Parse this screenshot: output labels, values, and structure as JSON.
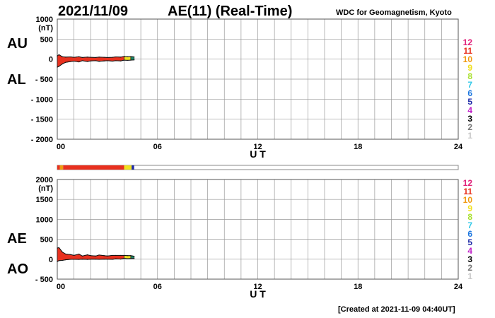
{
  "header": {
    "date": "2021/11/09",
    "title": "AE(11) (Real-Time)",
    "source": "WDC for Geomagnetism, Kyoto",
    "created": "[Created at 2021-11-09 04:40UT]"
  },
  "colors": {
    "fill_main": "#e8301e",
    "fill_recent": "#f0e020",
    "fill_latest": "#1f8a6a",
    "bar_edge": "#f09020",
    "grid": "#999999"
  },
  "legend_levels": [
    {
      "label": "12",
      "color": "#e0207a"
    },
    {
      "label": "11",
      "color": "#e8301e"
    },
    {
      "label": "10",
      "color": "#f09a10"
    },
    {
      "label": "9",
      "color": "#f0e020"
    },
    {
      "label": "8",
      "color": "#a8e030"
    },
    {
      "label": "7",
      "color": "#30c8e8"
    },
    {
      "label": "6",
      "color": "#1e78e0"
    },
    {
      "label": "5",
      "color": "#1e2aa8"
    },
    {
      "label": "4",
      "color": "#c020c8"
    },
    {
      "label": "3",
      "color": "#000000"
    },
    {
      "label": "2",
      "color": "#777777"
    },
    {
      "label": "1",
      "color": "#c8c8c8"
    }
  ],
  "chart_data": [
    {
      "type": "area",
      "panel": "AU/AL",
      "side_labels": [
        "AU",
        "AL"
      ],
      "ylabel": "(nT)",
      "xlabel": "U T",
      "ylim": [
        -2000,
        1000
      ],
      "yticks": [
        1000,
        500,
        0,
        -500,
        -1000,
        -1500,
        -2000
      ],
      "ytick_labels": [
        "1000",
        "500",
        "0",
        "- 500",
        "- 1000",
        "- 1500",
        "- 2000"
      ],
      "xlim": [
        0,
        24
      ],
      "xticks": [
        0,
        6,
        12,
        18,
        24
      ],
      "xtick_labels": [
        "00",
        "06",
        "12",
        "18",
        "24"
      ],
      "grid": true,
      "x": [
        0.0,
        0.1,
        0.3,
        0.5,
        0.8,
        1.0,
        1.3,
        1.5,
        1.8,
        2.0,
        2.3,
        2.5,
        2.8,
        3.0,
        3.3,
        3.5,
        3.8,
        4.0,
        4.2,
        4.4,
        4.6
      ],
      "series": [
        {
          "name": "AU",
          "values": [
            80,
            110,
            60,
            50,
            55,
            45,
            60,
            40,
            50,
            45,
            40,
            50,
            45,
            40,
            45,
            55,
            50,
            70,
            60,
            65,
            55
          ]
        },
        {
          "name": "AL",
          "values": [
            -200,
            -180,
            -120,
            -80,
            -60,
            -50,
            -70,
            -40,
            -60,
            -45,
            -40,
            -55,
            -45,
            -40,
            -50,
            -40,
            -45,
            -25,
            -30,
            -25,
            -20
          ]
        }
      ]
    },
    {
      "type": "area",
      "panel": "AE/AO",
      "side_labels": [
        "AE",
        "AO"
      ],
      "ylabel": "(nT)",
      "xlabel": "U T",
      "ylim": [
        -500,
        2000
      ],
      "yticks": [
        2000,
        1500,
        1000,
        500,
        0,
        -500
      ],
      "ytick_labels": [
        "2000",
        "1500",
        "1000",
        "500",
        "0",
        "- 500"
      ],
      "xlim": [
        0,
        24
      ],
      "xticks": [
        0,
        6,
        12,
        18,
        24
      ],
      "xtick_labels": [
        "00",
        "06",
        "12",
        "18",
        "24"
      ],
      "grid": true,
      "x": [
        0.0,
        0.1,
        0.3,
        0.5,
        0.8,
        1.0,
        1.3,
        1.5,
        1.8,
        2.0,
        2.3,
        2.5,
        2.8,
        3.0,
        3.3,
        3.5,
        3.8,
        4.0,
        4.2,
        4.4,
        4.6
      ],
      "series": [
        {
          "name": "AE",
          "values": [
            280,
            290,
            180,
            130,
            115,
            95,
            130,
            80,
            110,
            90,
            80,
            105,
            90,
            80,
            95,
            95,
            95,
            95,
            90,
            90,
            75
          ]
        },
        {
          "name": "AO",
          "values": [
            -60,
            -35,
            -30,
            -15,
            -3,
            -3,
            -5,
            0,
            -5,
            0,
            0,
            -3,
            0,
            0,
            -3,
            8,
            3,
            23,
            15,
            20,
            18
          ]
        }
      ]
    }
  ],
  "activity_bar": {
    "segments": [
      {
        "start": 0.0,
        "end": 0.15,
        "level": "11"
      },
      {
        "start": 0.15,
        "end": 0.35,
        "level": "10"
      },
      {
        "start": 0.35,
        "end": 4.0,
        "level": "11"
      },
      {
        "start": 4.0,
        "end": 4.45,
        "level": "9"
      },
      {
        "start": 4.45,
        "end": 4.6,
        "level": "5"
      }
    ]
  }
}
